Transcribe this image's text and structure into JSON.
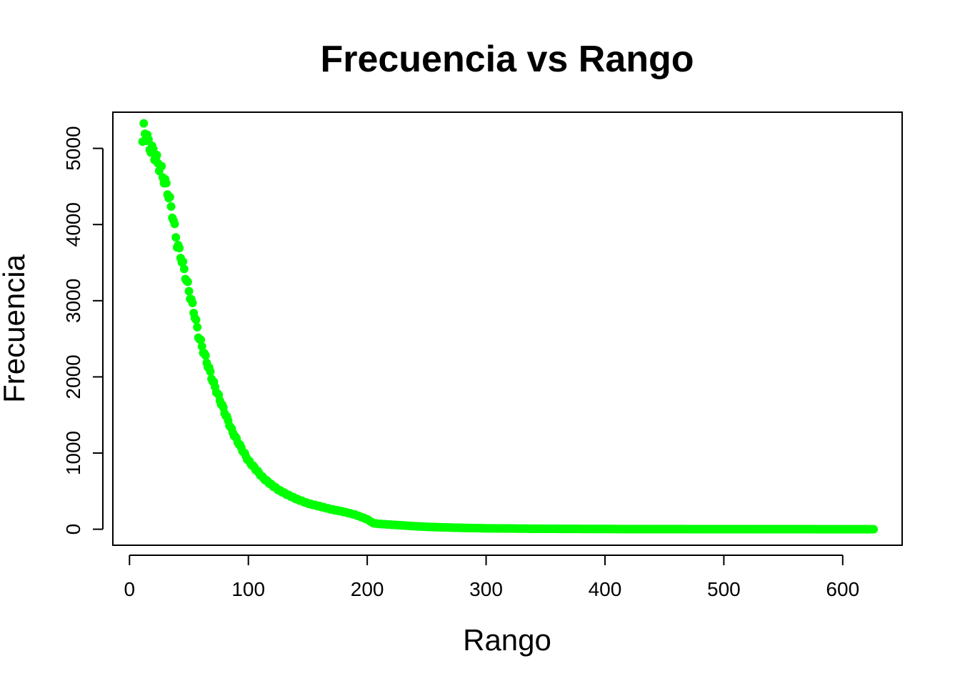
{
  "chart_data": {
    "type": "scatter",
    "title": "Frecuencia vs Rango",
    "xlabel": "Rango",
    "ylabel": "Frecuencia",
    "xlim": [
      -14,
      650
    ],
    "ylim": [
      -210,
      5475
    ],
    "x_ticks": [
      0,
      100,
      200,
      300,
      400,
      500,
      600
    ],
    "y_ticks": [
      0,
      1000,
      2000,
      3000,
      4000,
      5000
    ],
    "grid": false,
    "legend": "none",
    "point_color": "#00ff00",
    "points_anchor": [
      [
        11,
        5100
      ],
      [
        12,
        5250
      ],
      [
        13,
        5200
      ],
      [
        15,
        5150
      ],
      [
        16,
        5050
      ],
      [
        18,
        5000
      ],
      [
        20,
        4950
      ],
      [
        22,
        4880
      ],
      [
        24,
        4800
      ],
      [
        26,
        4750
      ],
      [
        28,
        4650
      ],
      [
        30,
        4550
      ],
      [
        32,
        4450
      ],
      [
        34,
        4300
      ],
      [
        36,
        4150
      ],
      [
        38,
        3950
      ],
      [
        40,
        3750
      ],
      [
        43,
        3600
      ],
      [
        46,
        3400
      ],
      [
        49,
        3200
      ],
      [
        52,
        3000
      ],
      [
        55,
        2800
      ],
      [
        58,
        2550
      ],
      [
        62,
        2350
      ],
      [
        66,
        2150
      ],
      [
        70,
        1950
      ],
      [
        74,
        1780
      ],
      [
        78,
        1620
      ],
      [
        82,
        1460
      ],
      [
        86,
        1300
      ],
      [
        90,
        1180
      ],
      [
        95,
        1040
      ],
      [
        100,
        900
      ],
      [
        106,
        790
      ],
      [
        112,
        680
      ],
      [
        118,
        600
      ],
      [
        125,
        520
      ],
      [
        132,
        460
      ],
      [
        140,
        400
      ],
      [
        150,
        340
      ],
      [
        160,
        300
      ],
      [
        170,
        260
      ],
      [
        180,
        230
      ],
      [
        190,
        190
      ],
      [
        200,
        130
      ],
      [
        205,
        80
      ],
      [
        210,
        70
      ],
      [
        220,
        60
      ],
      [
        230,
        50
      ],
      [
        240,
        40
      ],
      [
        250,
        32
      ],
      [
        265,
        24
      ],
      [
        280,
        18
      ],
      [
        300,
        12
      ],
      [
        330,
        8
      ],
      [
        360,
        5
      ],
      [
        400,
        3
      ],
      [
        450,
        2
      ],
      [
        500,
        1
      ],
      [
        550,
        1
      ],
      [
        600,
        0
      ],
      [
        626,
        0
      ]
    ],
    "x_max_point": 626
  }
}
